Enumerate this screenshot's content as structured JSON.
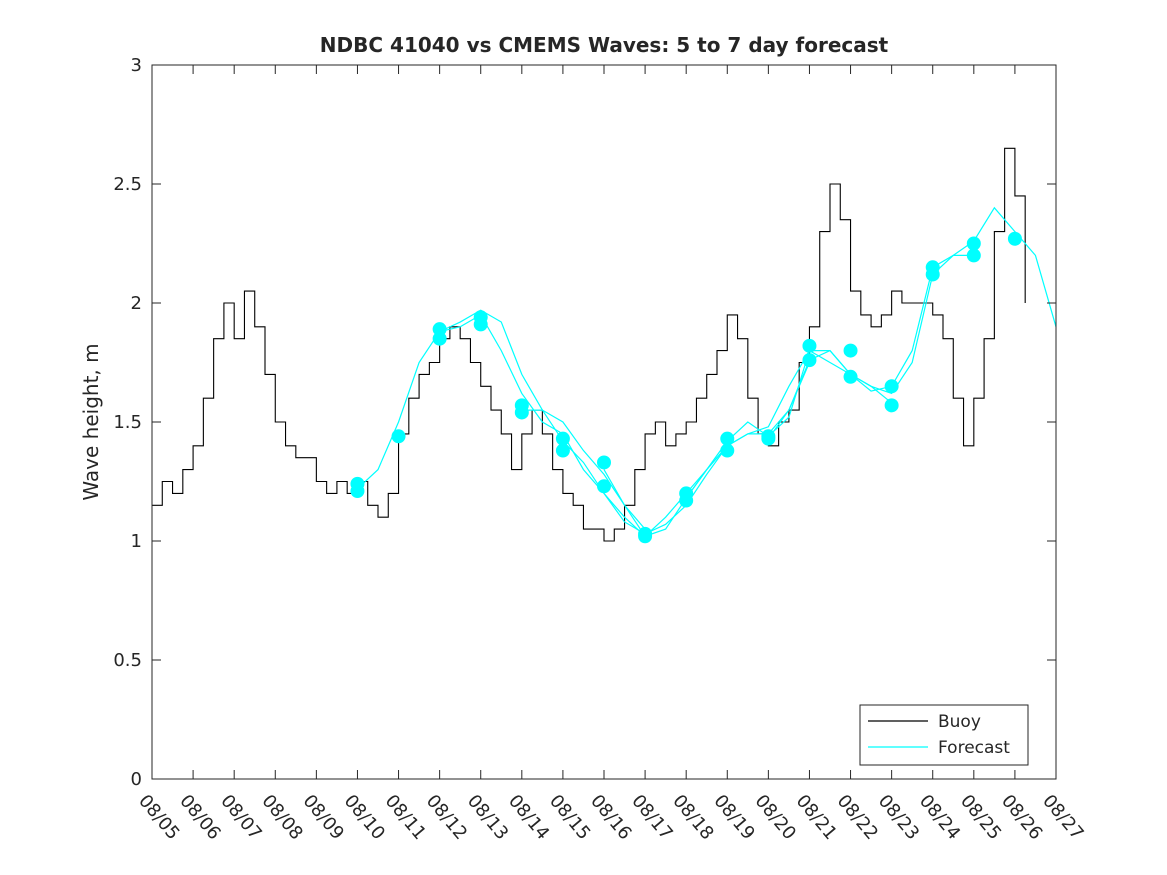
{
  "chart_data": {
    "type": "line",
    "title": "NDBC 41040 vs CMEMS Waves: 5 to 7 day forecast",
    "xlabel": "",
    "ylabel": "Wave height, m",
    "xlim": [
      0,
      22
    ],
    "ylim": [
      0,
      3
    ],
    "grid": false,
    "legend_position": "bottom-right",
    "x_tick_labels": [
      "08/05",
      "08/06",
      "08/07",
      "08/08",
      "08/09",
      "08/10",
      "08/11",
      "08/12",
      "08/13",
      "08/14",
      "08/15",
      "08/16",
      "08/17",
      "08/18",
      "08/19",
      "08/20",
      "08/21",
      "08/22",
      "08/23",
      "08/24",
      "08/25",
      "08/26",
      "08/27"
    ],
    "y_ticks": [
      0,
      0.5,
      1,
      1.5,
      2,
      2.5,
      3
    ],
    "y_tick_labels": [
      "0",
      "0.5",
      "1",
      "1.5",
      "2",
      "2.5",
      "3"
    ],
    "colors": {
      "buoy": "#000000",
      "forecast": "#00ffff",
      "axes": "#262626"
    },
    "series": [
      {
        "name": "Buoy",
        "x": [
          0.0,
          0.25,
          0.5,
          0.75,
          1.0,
          1.25,
          1.5,
          1.75,
          2.0,
          2.25,
          2.5,
          2.75,
          3.0,
          3.25,
          3.5,
          3.75,
          4.0,
          4.25,
          4.5,
          4.75,
          5.0,
          5.25,
          5.5,
          5.75,
          6.0,
          6.25,
          6.5,
          6.75,
          7.0,
          7.25,
          7.5,
          7.75,
          8.0,
          8.25,
          8.5,
          8.75,
          9.0,
          9.25,
          9.5,
          9.75,
          10.0,
          10.25,
          10.5,
          10.75,
          11.0,
          11.25,
          11.5,
          11.75,
          12.0,
          12.25,
          12.5,
          12.75,
          13.0,
          13.25,
          13.5,
          13.75,
          14.0,
          14.25,
          14.5,
          14.75,
          15.0,
          15.25,
          15.5,
          15.75,
          16.0,
          16.25,
          16.5,
          16.75,
          17.0,
          17.25,
          17.5,
          17.75,
          18.0,
          18.25,
          18.5,
          18.75,
          19.0,
          19.25,
          19.5,
          19.75,
          20.0,
          20.25,
          20.5,
          20.75,
          21.0,
          21.25
        ],
        "values": [
          1.15,
          1.25,
          1.2,
          1.3,
          1.4,
          1.6,
          1.85,
          2.0,
          1.85,
          2.05,
          1.9,
          1.7,
          1.5,
          1.4,
          1.35,
          1.35,
          1.25,
          1.2,
          1.25,
          1.2,
          1.25,
          1.15,
          1.1,
          1.2,
          1.45,
          1.6,
          1.7,
          1.75,
          1.85,
          1.9,
          1.85,
          1.75,
          1.65,
          1.55,
          1.45,
          1.3,
          1.45,
          1.55,
          1.45,
          1.3,
          1.2,
          1.15,
          1.05,
          1.05,
          1.0,
          1.05,
          1.15,
          1.3,
          1.45,
          1.5,
          1.4,
          1.45,
          1.5,
          1.6,
          1.7,
          1.8,
          1.95,
          1.85,
          1.6,
          1.45,
          1.4,
          1.5,
          1.55,
          1.75,
          1.9,
          2.3,
          2.5,
          2.35,
          2.05,
          1.95,
          1.9,
          1.95,
          2.05,
          2.0,
          2.0,
          2.0,
          1.95,
          1.85,
          1.6,
          1.4,
          1.6,
          1.85,
          2.3,
          2.65,
          2.45,
          2.0
        ]
      },
      {
        "name": "Forecast",
        "runs": [
          {
            "x": [
              5.0,
              5.5,
              6.0,
              6.5,
              7.0,
              7.5,
              8.0,
              8.5,
              9.0,
              9.5,
              10.0,
              10.5,
              11.0,
              11.5,
              12.0
            ],
            "values": [
              1.22,
              1.3,
              1.5,
              1.75,
              1.88,
              1.92,
              1.97,
              1.92,
              1.7,
              1.55,
              1.5,
              1.38,
              1.28,
              1.15,
              1.05
            ]
          },
          {
            "x": [
              7.0,
              7.5,
              8.0,
              8.5,
              9.0,
              9.5,
              10.0,
              10.5,
              11.0,
              11.5,
              12.0,
              12.5,
              13.0,
              13.5,
              14.0
            ],
            "values": [
              1.88,
              1.9,
              1.95,
              1.8,
              1.62,
              1.5,
              1.45,
              1.3,
              1.2,
              1.08,
              1.03,
              1.07,
              1.15,
              1.28,
              1.4
            ]
          },
          {
            "x": [
              9.0,
              9.5,
              10.0,
              10.5,
              11.0,
              11.5,
              12.0,
              12.5,
              13.0,
              13.5,
              14.0,
              14.5,
              15.0,
              15.5,
              16.0
            ],
            "values": [
              1.55,
              1.55,
              1.42,
              1.33,
              1.2,
              1.1,
              1.02,
              1.1,
              1.2,
              1.3,
              1.4,
              1.45,
              1.45,
              1.55,
              1.75
            ]
          },
          {
            "x": [
              11.0,
              11.5,
              12.0,
              12.5,
              13.0,
              13.5,
              14.0,
              14.5,
              15.0,
              15.5,
              16.0,
              16.5,
              17.0,
              17.5,
              18.0
            ],
            "values": [
              1.3,
              1.15,
              1.02,
              1.05,
              1.18,
              1.3,
              1.4,
              1.45,
              1.48,
              1.65,
              1.8,
              1.75,
              1.7,
              1.65,
              1.58
            ]
          },
          {
            "x": [
              13.0,
              13.5,
              14.0,
              14.5,
              15.0,
              15.5,
              16.0,
              16.5,
              17.0,
              17.5,
              18.0,
              18.5,
              19.0,
              19.5,
              20.0
            ],
            "values": [
              1.18,
              1.3,
              1.42,
              1.5,
              1.44,
              1.52,
              1.8,
              1.8,
              1.7,
              1.63,
              1.65,
              1.8,
              2.15,
              2.2,
              2.2
            ]
          },
          {
            "x": [
              15.0,
              15.5,
              16.0,
              16.5,
              17.0,
              17.5,
              18.0,
              18.5,
              19.0,
              19.5,
              20.0,
              20.5,
              21.0,
              21.5,
              22.0
            ],
            "values": [
              1.43,
              1.55,
              1.76,
              1.8,
              1.7,
              1.65,
              1.62,
              1.75,
              2.12,
              2.2,
              2.26,
              2.4,
              2.3,
              2.2,
              1.9
            ]
          }
        ],
        "markers": {
          "x": [
            5.0,
            5.0,
            6.0,
            7.0,
            7.0,
            8.0,
            8.0,
            9.0,
            9.0,
            10.0,
            10.0,
            11.0,
            11.0,
            12.0,
            12.0,
            13.0,
            13.0,
            14.0,
            14.0,
            15.0,
            15.0,
            16.0,
            16.0,
            17.0,
            17.0,
            18.0,
            18.0,
            19.0,
            19.0,
            20.0,
            20.0,
            21.0
          ],
          "values": [
            1.24,
            1.21,
            1.44,
            1.89,
            1.85,
            1.94,
            1.91,
            1.57,
            1.54,
            1.43,
            1.38,
            1.33,
            1.23,
            1.03,
            1.02,
            1.2,
            1.17,
            1.43,
            1.38,
            1.44,
            1.43,
            1.82,
            1.76,
            1.8,
            1.69,
            1.65,
            1.57,
            2.15,
            2.12,
            2.25,
            2.2,
            2.27
          ]
        }
      }
    ]
  }
}
